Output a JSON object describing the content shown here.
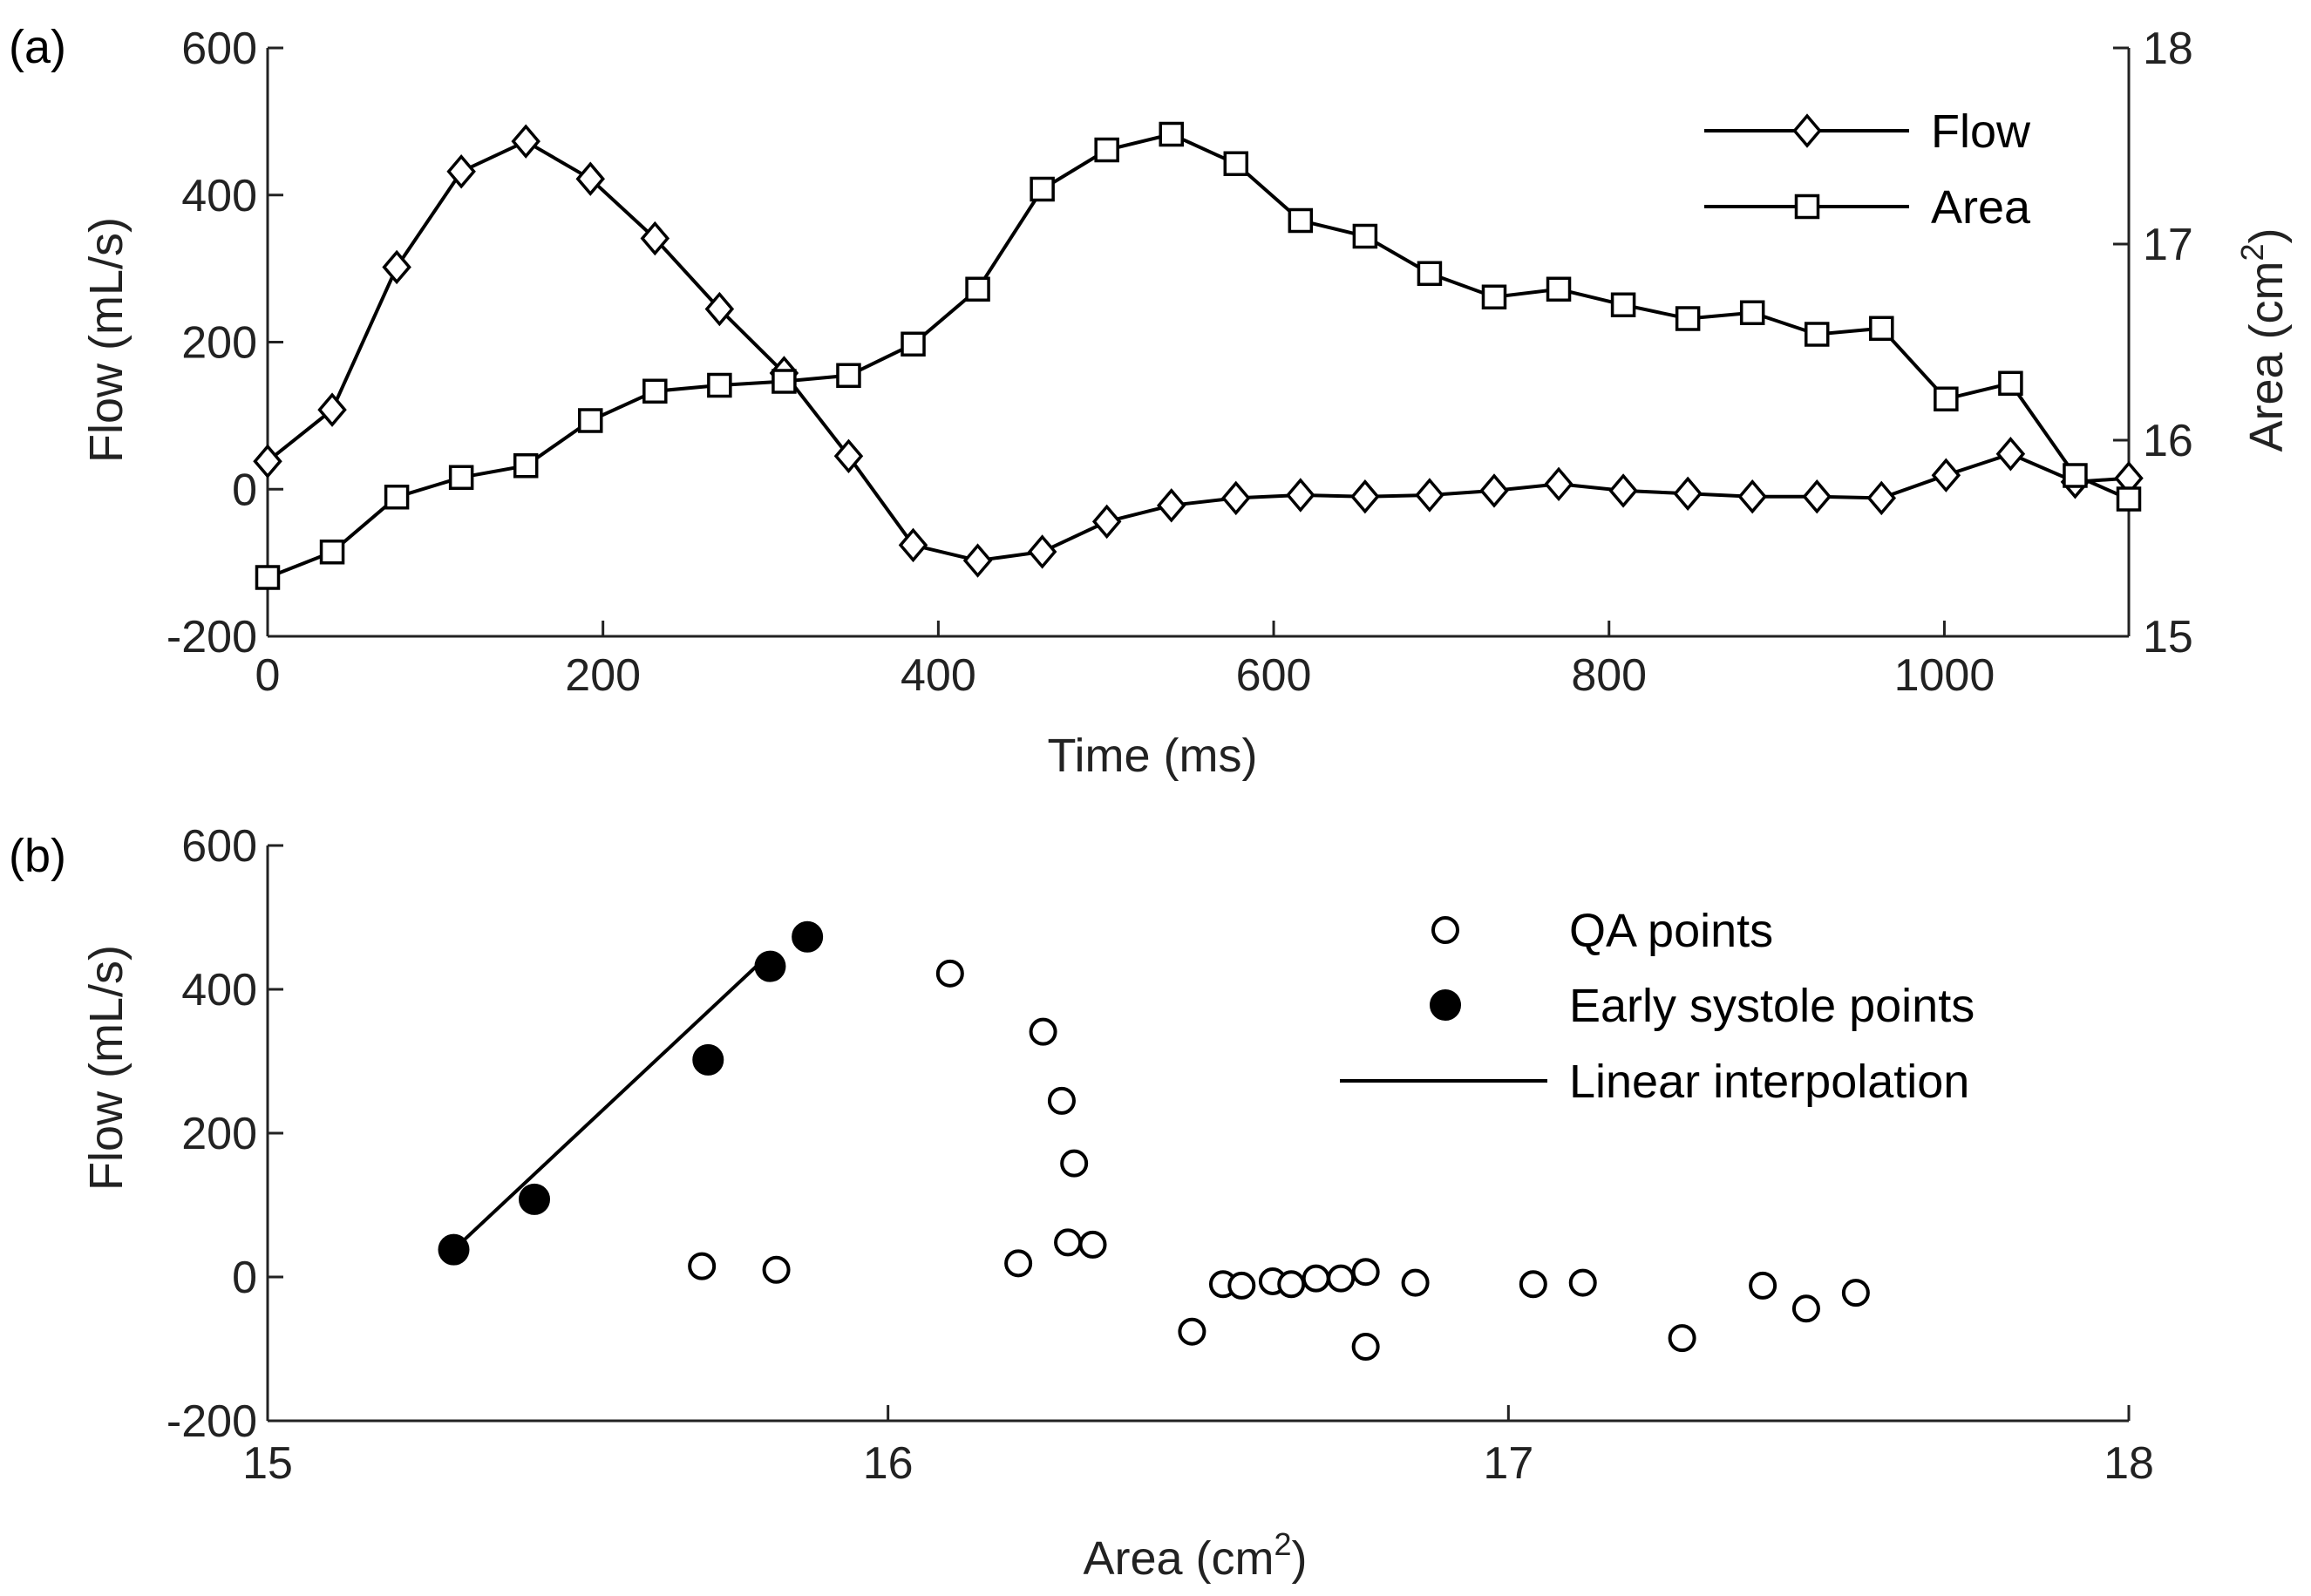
{
  "chart_data": [
    {
      "type": "line",
      "panel_label": "(a)",
      "xlabel": "Time (ms)",
      "ylabel": "Flow (mL/s)",
      "y2label_main": "Area (cm",
      "y2label_sup": "2",
      "y2label_end": ")",
      "xlim": [
        0,
        1110
      ],
      "ylim": [
        -200,
        600
      ],
      "y2lim": [
        15,
        18
      ],
      "xticks": [
        0,
        200,
        400,
        600,
        800,
        1000
      ],
      "yticks": [
        -200,
        0,
        200,
        400,
        600
      ],
      "y2ticks": [
        15,
        16,
        17,
        18
      ],
      "grid": false,
      "legend": {
        "position": "top-right",
        "entries": [
          "Flow",
          "Area"
        ]
      },
      "x": [
        0,
        38.5,
        77,
        115.5,
        154,
        192.5,
        231,
        269.5,
        308,
        346.5,
        385,
        423.5,
        462,
        500.5,
        539,
        577.5,
        616,
        654.5,
        693,
        731.5,
        770,
        808.5,
        847,
        885.5,
        924,
        962.5,
        1001,
        1039.5,
        1078,
        1110
      ],
      "series": [
        {
          "name": "Flow",
          "marker": "diamond",
          "axis": "left",
          "values": [
            38,
            108,
            302,
            432,
            473,
            422,
            341,
            245,
            158,
            45,
            -76,
            -97,
            -85,
            -44,
            -22,
            -12,
            -8,
            -10,
            -8,
            -2,
            7,
            -2,
            -6,
            -10,
            -10,
            -12,
            19,
            48,
            10,
            15
          ]
        },
        {
          "name": "Area",
          "marker": "square",
          "axis": "right",
          "values": [
            15.3,
            15.43,
            15.71,
            15.81,
            15.87,
            16.1,
            16.25,
            16.28,
            16.3,
            16.33,
            16.49,
            16.77,
            17.28,
            17.48,
            17.56,
            17.41,
            17.12,
            17.04,
            16.85,
            16.73,
            16.77,
            16.69,
            16.62,
            16.65,
            16.54,
            16.57,
            16.21,
            16.29,
            15.82,
            15.7
          ]
        }
      ]
    },
    {
      "type": "scatter",
      "panel_label": "(b)",
      "xlabel_main": "Area (cm",
      "xlabel_sup": "2",
      "xlabel_end": ")",
      "ylabel": "Flow (mL/s)",
      "xlim": [
        15,
        18
      ],
      "ylim": [
        -200,
        600
      ],
      "xticks": [
        15,
        16,
        17,
        18
      ],
      "yticks": [
        -200,
        0,
        200,
        400,
        600
      ],
      "grid": false,
      "legend": {
        "position": "top-right",
        "entries": [
          "QA points",
          "Early systole points",
          "Linear interpolation"
        ]
      },
      "series": [
        {
          "name": "QA points",
          "marker": "open-circle",
          "x": [
            16.1,
            16.25,
            16.28,
            16.3,
            16.33,
            16.49,
            16.77,
            17.28,
            17.48,
            17.56,
            17.41,
            17.12,
            17.04,
            16.85,
            16.73,
            16.77,
            16.69,
            16.62,
            16.65,
            16.54,
            16.57,
            16.21,
            16.29,
            15.82,
            15.7
          ],
          "y": [
            422,
            341,
            245,
            158,
            45,
            -76,
            -97,
            -85,
            -44,
            -22,
            -12,
            -8,
            -10,
            -8,
            -2,
            7,
            -2,
            -6,
            -10,
            -10,
            -12,
            19,
            48,
            10,
            15
          ]
        },
        {
          "name": "Early systole points",
          "marker": "filled-circle",
          "x": [
            15.3,
            15.43,
            15.71,
            15.81,
            15.87
          ],
          "y": [
            38,
            108,
            302,
            432,
            473
          ]
        },
        {
          "name": "Linear interpolation",
          "marker": "line",
          "x": [
            15.3,
            15.81
          ],
          "y": [
            38,
            450
          ]
        }
      ]
    }
  ]
}
